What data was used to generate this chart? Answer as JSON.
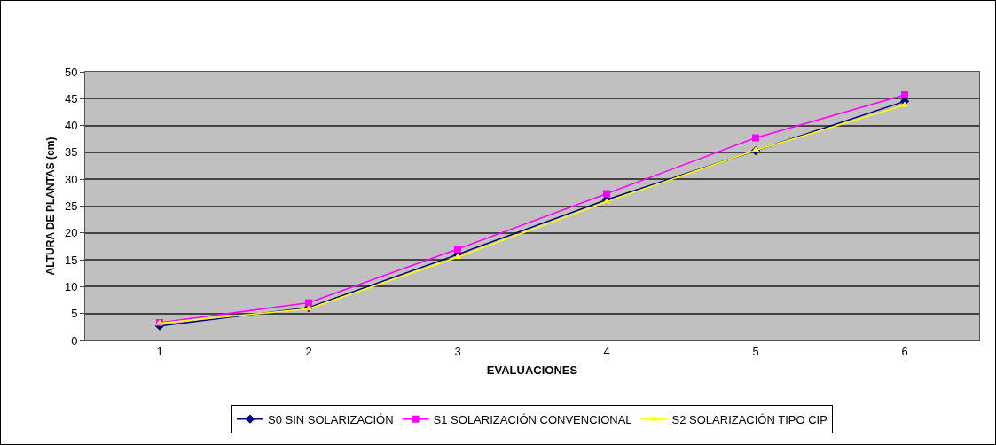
{
  "chart_data": {
    "type": "line",
    "xlabel": "EVALUACIONES",
    "ylabel": "ALTURA DE PLANTAS (cm)",
    "categories": [
      "1",
      "2",
      "3",
      "4",
      "5",
      "6"
    ],
    "series": [
      {
        "name": "S0 SIN SOLARIZACIÓN",
        "color": "#000080",
        "marker": "diamond",
        "values": [
          2.7,
          6.1,
          16.0,
          26.2,
          35.3,
          44.5
        ]
      },
      {
        "name": "S1 SOLARIZACIÓN CONVENCIONAL",
        "color": "#ff00ff",
        "marker": "square",
        "values": [
          3.3,
          7.0,
          17.0,
          27.3,
          37.7,
          45.7
        ]
      },
      {
        "name": "S2 SOLARIZACIÓN TIPO CIP",
        "color": "#ffff00",
        "marker": "triangle",
        "values": [
          3.2,
          5.9,
          15.5,
          25.8,
          35.4,
          43.8
        ]
      }
    ],
    "ylim": [
      0,
      50
    ],
    "yticks": [
      0,
      5,
      10,
      15,
      20,
      25,
      30,
      35,
      40,
      45,
      50
    ],
    "grid": "y",
    "legend": "bottom",
    "line_style": "solid"
  }
}
